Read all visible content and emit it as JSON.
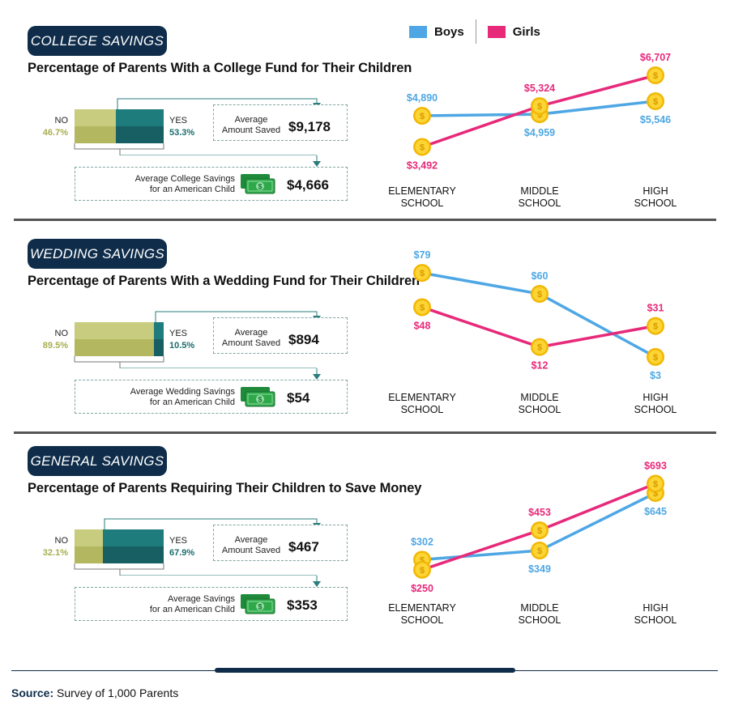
{
  "legend": {
    "boys": "Boys",
    "girls": "Girls"
  },
  "colors": {
    "boys": "#4ea7e4",
    "girls": "#e7297a",
    "navy": "#0f2d4a",
    "coin": "#f5c518",
    "no_bar": "#b8bd66",
    "yes_bar": "#1b6c6e"
  },
  "sections": [
    {
      "tag": "COLLEGE SAVINGS",
      "heading": "Percentage of Parents With a College Fund for Their Children",
      "no_label": "NO",
      "no_pct": "46.7%",
      "yes_label": "YES",
      "yes_pct": "53.3%",
      "no_fraction": 0.467,
      "avg_saved_caption_1": "Average",
      "avg_saved_caption_2": "Amount Saved",
      "avg_saved_value": "$9,178",
      "avg_child_caption_1": "Average College Savings",
      "avg_child_caption_2": "for an American Child",
      "avg_child_value": "$4,666"
    },
    {
      "tag": "WEDDING SAVINGS",
      "heading": "Percentage of Parents With a Wedding Fund for Their Children",
      "no_label": "NO",
      "no_pct": "89.5%",
      "yes_label": "YES",
      "yes_pct": "10.5%",
      "no_fraction": 0.895,
      "avg_saved_caption_1": "Average",
      "avg_saved_caption_2": "Amount Saved",
      "avg_saved_value": "$894",
      "avg_child_caption_1": "Average Wedding Savings",
      "avg_child_caption_2": "for an American Child",
      "avg_child_value": "$54"
    },
    {
      "tag": "GENERAL SAVINGS",
      "heading": "Percentage of Parents Requiring Their Children to Save Money",
      "no_label": "NO",
      "no_pct": "32.1%",
      "yes_label": "YES",
      "yes_pct": "67.9%",
      "no_fraction": 0.321,
      "avg_saved_caption_1": "Average",
      "avg_saved_caption_2": "Amount Saved",
      "avg_saved_value": "$467",
      "avg_child_caption_1": "Average Savings",
      "avg_child_caption_2": "for an American Child",
      "avg_child_value": "$353"
    }
  ],
  "chart_data": [
    {
      "type": "line",
      "categories": [
        "ELEMENTARY\nSCHOOL",
        "MIDDLE\nSCHOOL",
        "HIGH\nSCHOOL"
      ],
      "series": [
        {
          "name": "Boys",
          "values": [
            4890,
            4959,
            5546
          ],
          "labels": [
            "$4,890",
            "$4,959",
            "$5,546"
          ]
        },
        {
          "name": "Girls",
          "values": [
            3492,
            5324,
            6707
          ],
          "labels": [
            "$3,492",
            "$5,324",
            "$6,707"
          ]
        }
      ],
      "ylim": [
        3000,
        7000
      ],
      "label_pos": {
        "Boys": [
          "above",
          "below",
          "below"
        ],
        "Girls": [
          "below",
          "above",
          "above"
        ]
      }
    },
    {
      "type": "line",
      "categories": [
        "ELEMENTARY\nSCHOOL",
        "MIDDLE\nSCHOOL",
        "HIGH\nSCHOOL"
      ],
      "series": [
        {
          "name": "Boys",
          "values": [
            79,
            60,
            3
          ],
          "labels": [
            "$79",
            "$60",
            "$3"
          ]
        },
        {
          "name": "Girls",
          "values": [
            48,
            12,
            31
          ],
          "labels": [
            "$48",
            "$12",
            "$31"
          ]
        }
      ],
      "ylim": [
        0,
        82
      ],
      "label_pos": {
        "Boys": [
          "above",
          "above",
          "below"
        ],
        "Girls": [
          "below",
          "below",
          "above"
        ]
      }
    },
    {
      "type": "line",
      "categories": [
        "ELEMENTARY\nSCHOOL",
        "MIDDLE\nSCHOOL",
        "HIGH\nSCHOOL"
      ],
      "series": [
        {
          "name": "Boys",
          "values": [
            302,
            349,
            645
          ],
          "labels": [
            "$302",
            "$349",
            "$645"
          ]
        },
        {
          "name": "Girls",
          "values": [
            250,
            453,
            693
          ],
          "labels": [
            "$250",
            "$453",
            "$693"
          ]
        }
      ],
      "ylim": [
        220,
        720
      ],
      "label_pos": {
        "Boys": [
          "above",
          "below",
          "below"
        ],
        "Girls": [
          "below",
          "above",
          "above"
        ]
      }
    }
  ],
  "source_label": "Source:",
  "source_text": " Survey of 1,000 Parents"
}
